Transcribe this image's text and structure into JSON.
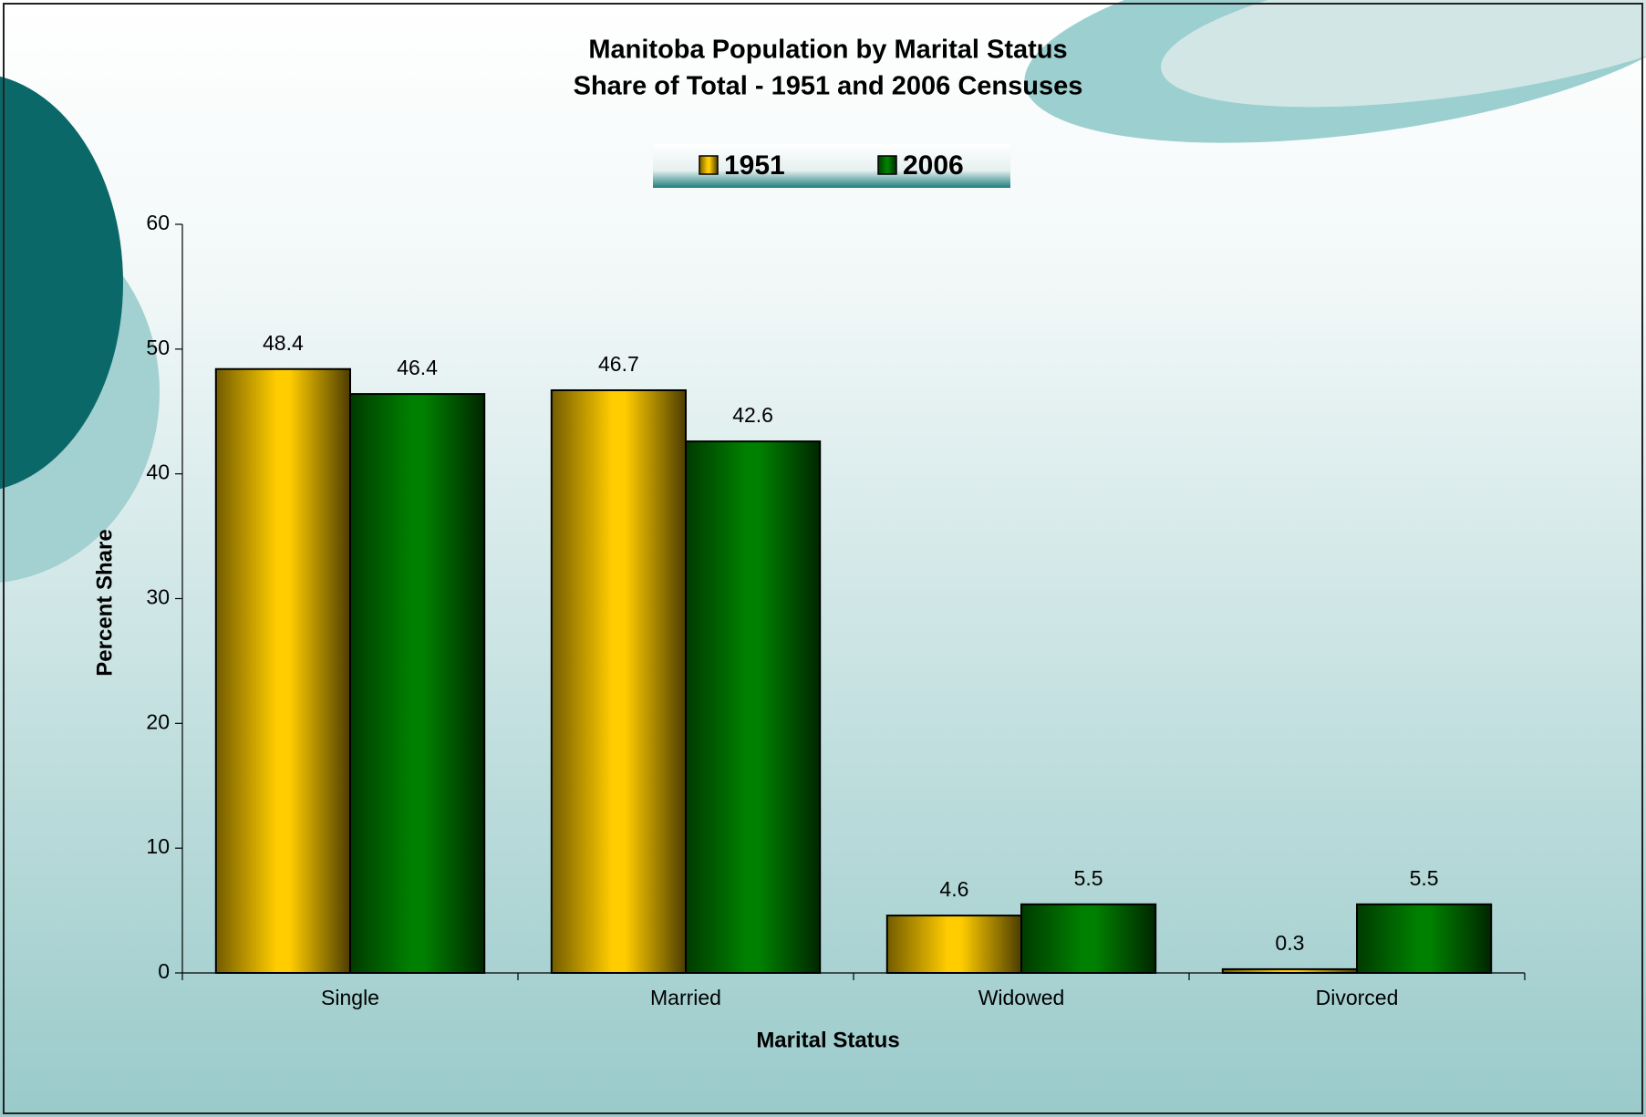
{
  "chart_data": {
    "type": "bar",
    "title": "Manitoba Population by Marital Status",
    "subtitle": "Share of Total - 1951 and 2006 Censuses",
    "x_label": "Marital Status",
    "y_label": "Percent Share",
    "categories": [
      "Single",
      "Married",
      "Widowed",
      "Divorced"
    ],
    "series": [
      {
        "name": "1951",
        "color": "#ffcc00",
        "values": [
          48.4,
          46.7,
          4.6,
          0.3
        ]
      },
      {
        "name": "2006",
        "color": "#008000",
        "values": [
          46.4,
          42.6,
          5.5,
          5.5
        ]
      }
    ],
    "ylim": [
      0,
      60
    ],
    "yticks": [
      0,
      10,
      20,
      30,
      40,
      50,
      60
    ],
    "grid": false,
    "legend": "top"
  }
}
